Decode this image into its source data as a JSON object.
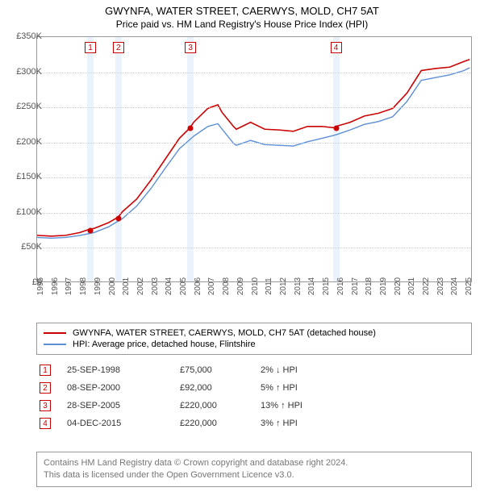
{
  "title": "GWYNFA, WATER STREET, CAERWYS, MOLD, CH7 5AT",
  "subtitle": "Price paid vs. HM Land Registry's House Price Index (HPI)",
  "chart": {
    "type": "line",
    "x_range": [
      1995,
      2025.5
    ],
    "y_range": [
      0,
      350000
    ],
    "y_ticks": [
      0,
      50000,
      100000,
      150000,
      200000,
      250000,
      300000,
      350000
    ],
    "y_tick_labels": [
      "£0",
      "£50K",
      "£100K",
      "£150K",
      "£200K",
      "£250K",
      "£300K",
      "£350K"
    ],
    "x_ticks": [
      1995,
      1996,
      1997,
      1998,
      1999,
      2000,
      2001,
      2002,
      2003,
      2004,
      2005,
      2006,
      2007,
      2008,
      2009,
      2010,
      2011,
      2012,
      2013,
      2014,
      2015,
      2016,
      2017,
      2018,
      2019,
      2020,
      2021,
      2022,
      2023,
      2024,
      2025
    ],
    "background_color": "#ffffff",
    "grid_color": "#cccccc",
    "axis_color": "#999999",
    "label_fontsize": 11,
    "series": [
      {
        "name": "property",
        "label": "GWYNFA, WATER STREET, CAERWYS, MOLD, CH7 5AT (detached house)",
        "color": "#cc0000",
        "line_width": 1.6,
        "data": [
          [
            1995,
            66000
          ],
          [
            1996,
            65000
          ],
          [
            1997,
            66000
          ],
          [
            1998,
            70000
          ],
          [
            1998.73,
            75000
          ],
          [
            1999,
            76000
          ],
          [
            2000,
            84000
          ],
          [
            2000.69,
            92000
          ],
          [
            2001,
            100000
          ],
          [
            2002,
            118000
          ],
          [
            2003,
            145000
          ],
          [
            2004,
            175000
          ],
          [
            2005,
            205000
          ],
          [
            2005.74,
            220000
          ],
          [
            2006,
            228000
          ],
          [
            2007,
            248000
          ],
          [
            2007.7,
            253000
          ],
          [
            2008,
            242000
          ],
          [
            2008.8,
            222000
          ],
          [
            2009,
            218000
          ],
          [
            2010,
            228000
          ],
          [
            2011,
            218000
          ],
          [
            2012,
            217000
          ],
          [
            2013,
            215000
          ],
          [
            2014,
            222000
          ],
          [
            2015,
            222000
          ],
          [
            2015.93,
            220000
          ],
          [
            2016,
            222000
          ],
          [
            2017,
            228000
          ],
          [
            2018,
            237000
          ],
          [
            2019,
            241000
          ],
          [
            2020,
            248000
          ],
          [
            2021,
            270000
          ],
          [
            2022,
            302000
          ],
          [
            2023,
            305000
          ],
          [
            2024,
            307000
          ],
          [
            2025,
            315000
          ],
          [
            2025.4,
            318000
          ]
        ]
      },
      {
        "name": "hpi",
        "label": "HPI: Average price, detached house, Flintshire",
        "color": "#5b8fd6",
        "line_width": 1.4,
        "data": [
          [
            1995,
            63000
          ],
          [
            1996,
            62000
          ],
          [
            1997,
            63000
          ],
          [
            1998,
            66000
          ],
          [
            1999,
            70000
          ],
          [
            2000,
            78000
          ],
          [
            2001,
            90000
          ],
          [
            2002,
            108000
          ],
          [
            2003,
            133000
          ],
          [
            2004,
            162000
          ],
          [
            2005,
            190000
          ],
          [
            2006,
            208000
          ],
          [
            2007,
            222000
          ],
          [
            2007.7,
            226000
          ],
          [
            2008,
            218000
          ],
          [
            2008.8,
            198000
          ],
          [
            2009,
            195000
          ],
          [
            2010,
            202000
          ],
          [
            2011,
            196000
          ],
          [
            2012,
            195000
          ],
          [
            2013,
            194000
          ],
          [
            2014,
            200000
          ],
          [
            2015,
            205000
          ],
          [
            2016,
            210000
          ],
          [
            2017,
            217000
          ],
          [
            2018,
            225000
          ],
          [
            2019,
            229000
          ],
          [
            2020,
            236000
          ],
          [
            2021,
            258000
          ],
          [
            2022,
            288000
          ],
          [
            2023,
            292000
          ],
          [
            2024,
            296000
          ],
          [
            2025,
            302000
          ],
          [
            2025.4,
            306000
          ]
        ]
      }
    ],
    "sale_markers": [
      {
        "n": "1",
        "x": 1998.73,
        "y": 75000
      },
      {
        "n": "2",
        "x": 2000.69,
        "y": 92000
      },
      {
        "n": "3",
        "x": 2005.74,
        "y": 220000
      },
      {
        "n": "4",
        "x": 2015.93,
        "y": 220000
      }
    ],
    "highlight_band_width_years": 0.45,
    "highlight_color": "#eaf2fb"
  },
  "legend": {
    "items": [
      {
        "color": "#cc0000",
        "label": "GWYNFA, WATER STREET, CAERWYS, MOLD, CH7 5AT (detached house)"
      },
      {
        "color": "#5b8fd6",
        "label": "HPI: Average price, detached house, Flintshire"
      }
    ]
  },
  "sales": [
    {
      "n": "1",
      "date": "25-SEP-1998",
      "price": "£75,000",
      "delta": "2% ↓ HPI"
    },
    {
      "n": "2",
      "date": "08-SEP-2000",
      "price": "£92,000",
      "delta": "5% ↑ HPI"
    },
    {
      "n": "3",
      "date": "28-SEP-2005",
      "price": "£220,000",
      "delta": "13% ↑ HPI"
    },
    {
      "n": "4",
      "date": "04-DEC-2015",
      "price": "£220,000",
      "delta": "3% ↑ HPI"
    }
  ],
  "footer_line1": "Contains HM Land Registry data © Crown copyright and database right 2024.",
  "footer_line2": "This data is licensed under the Open Government Licence v3.0."
}
